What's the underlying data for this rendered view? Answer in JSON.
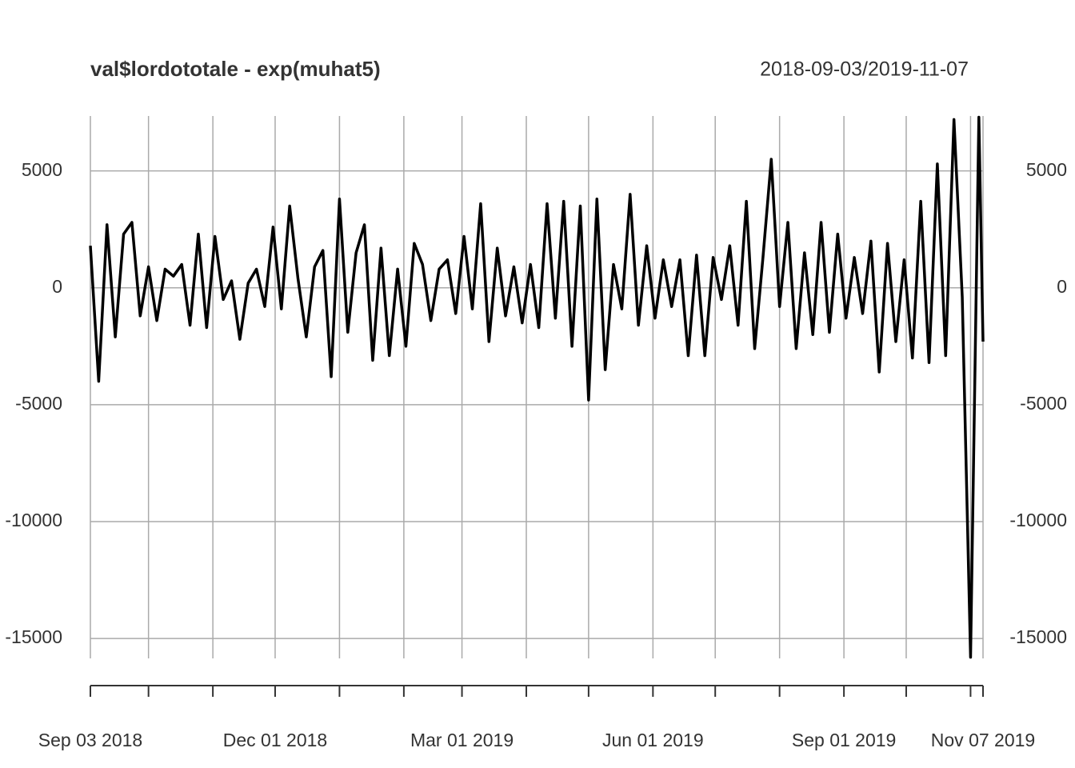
{
  "chart_data": {
    "type": "line",
    "title": "val$lordototale - exp(muhat5)",
    "subtitle": "2018-09-03/2019-11-07",
    "x": [
      "2018-09-03",
      "2018-09-07",
      "2018-09-11",
      "2018-09-15",
      "2018-09-19",
      "2018-09-23",
      "2018-09-27",
      "2018-10-01",
      "2018-10-05",
      "2018-10-09",
      "2018-10-13",
      "2018-10-17",
      "2018-10-21",
      "2018-10-25",
      "2018-10-29",
      "2018-11-02",
      "2018-11-06",
      "2018-11-10",
      "2018-11-14",
      "2018-11-18",
      "2018-11-22",
      "2018-11-26",
      "2018-11-30",
      "2018-12-04",
      "2018-12-08",
      "2018-12-12",
      "2018-12-16",
      "2018-12-20",
      "2018-12-24",
      "2018-12-28",
      "2019-01-01",
      "2019-01-05",
      "2019-01-09",
      "2019-01-13",
      "2019-01-17",
      "2019-01-21",
      "2019-01-25",
      "2019-01-29",
      "2019-02-02",
      "2019-02-06",
      "2019-02-10",
      "2019-02-14",
      "2019-02-18",
      "2019-02-22",
      "2019-02-26",
      "2019-03-02",
      "2019-03-06",
      "2019-03-10",
      "2019-03-14",
      "2019-03-18",
      "2019-03-22",
      "2019-03-26",
      "2019-03-30",
      "2019-04-03",
      "2019-04-07",
      "2019-04-11",
      "2019-04-15",
      "2019-04-19",
      "2019-04-23",
      "2019-04-27",
      "2019-05-01",
      "2019-05-05",
      "2019-05-09",
      "2019-05-13",
      "2019-05-17",
      "2019-05-21",
      "2019-05-25",
      "2019-05-29",
      "2019-06-02",
      "2019-06-06",
      "2019-06-10",
      "2019-06-14",
      "2019-06-18",
      "2019-06-22",
      "2019-06-26",
      "2019-06-30",
      "2019-07-04",
      "2019-07-08",
      "2019-07-12",
      "2019-07-16",
      "2019-07-20",
      "2019-07-24",
      "2019-07-28",
      "2019-08-01",
      "2019-08-05",
      "2019-08-09",
      "2019-08-13",
      "2019-08-17",
      "2019-08-21",
      "2019-08-25",
      "2019-08-29",
      "2019-09-02",
      "2019-09-06",
      "2019-09-10",
      "2019-09-14",
      "2019-09-18",
      "2019-09-22",
      "2019-09-26",
      "2019-09-30",
      "2019-10-04",
      "2019-10-08",
      "2019-10-12",
      "2019-10-16",
      "2019-10-20",
      "2019-10-24",
      "2019-10-28",
      "2019-11-01",
      "2019-11-05",
      "2019-11-07"
    ],
    "values": [
      1800,
      -4000,
      2700,
      -2100,
      2300,
      2800,
      -1200,
      900,
      -1400,
      800,
      500,
      1000,
      -1600,
      2300,
      -1700,
      2200,
      -500,
      300,
      -2200,
      200,
      800,
      -800,
      2600,
      -900,
      3500,
      400,
      -2100,
      900,
      1600,
      -3800,
      3800,
      -1900,
      1500,
      2700,
      -3100,
      1700,
      -2900,
      800,
      -2500,
      1900,
      1000,
      -1400,
      800,
      1200,
      -1100,
      2200,
      -900,
      3600,
      -2300,
      1700,
      -1200,
      900,
      -1500,
      1000,
      -1700,
      3600,
      -1300,
      3700,
      -2500,
      3500,
      -4800,
      3800,
      -3500,
      1000,
      -900,
      4000,
      -1600,
      1800,
      -1300,
      1200,
      -800,
      1200,
      -2900,
      1400,
      -2900,
      1300,
      -500,
      1800,
      -1600,
      3700,
      -2600,
      1300,
      5500,
      -800,
      2800,
      -2600,
      1500,
      -2000,
      2800,
      -1900,
      2300,
      -1300,
      1300,
      -1100,
      2000,
      -3600,
      1900,
      -2300,
      1200,
      -3000,
      3700,
      -3200,
      5300,
      -2900,
      7200,
      -400,
      -15800,
      7300,
      -2300
    ],
    "color": "#000000",
    "xlim": [
      "2018-09-03",
      "2019-11-07"
    ],
    "xticks": [
      {
        "value": "2018-09-03",
        "label": "Sep 03 2018"
      },
      {
        "value": "2018-10-01",
        "label": null
      },
      {
        "value": "2018-11-01",
        "label": null
      },
      {
        "value": "2018-12-01",
        "label": "Dec 01 2018"
      },
      {
        "value": "2019-01-01",
        "label": null
      },
      {
        "value": "2019-02-01",
        "label": null
      },
      {
        "value": "2019-03-01",
        "label": "Mar 01 2019"
      },
      {
        "value": "2019-04-01",
        "label": null
      },
      {
        "value": "2019-05-01",
        "label": null
      },
      {
        "value": "2019-06-01",
        "label": "Jun 01 2019"
      },
      {
        "value": "2019-07-01",
        "label": null
      },
      {
        "value": "2019-08-01",
        "label": null
      },
      {
        "value": "2019-09-01",
        "label": "Sep 01 2019"
      },
      {
        "value": "2019-10-01",
        "label": null
      },
      {
        "value": "2019-11-01",
        "label": null
      },
      {
        "value": "2019-11-07",
        "label": "Nov 07 2019"
      }
    ],
    "ylim": [
      -15850,
      7350
    ],
    "yticks": [
      -15000,
      -10000,
      -5000,
      0,
      5000
    ],
    "grid": true
  }
}
